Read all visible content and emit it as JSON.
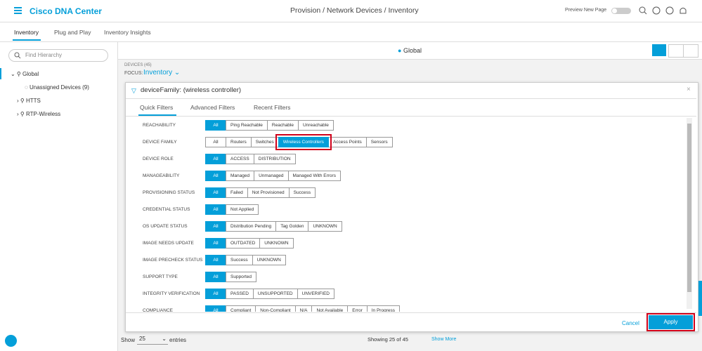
{
  "header": {
    "brand": "Cisco DNA Center",
    "breadcrumb": "Provision / Network Devices / Inventory",
    "preview": "Preview New Page"
  },
  "tabs": [
    "Inventory",
    "Plug and Play",
    "Inventory Insights"
  ],
  "sidebar": {
    "search": "Find Hierarchy",
    "root": "Global",
    "items": [
      "Unassigned Devices (9)",
      "HTTS",
      "RTP-Wireless"
    ]
  },
  "location": "Global",
  "devices": {
    "count": "DEVICES (45)",
    "focus_label": "FOCUS:",
    "focus": "Inventory"
  },
  "filter": {
    "query": "deviceFamily: (wireless controller)",
    "tabs": [
      "Quick Filters",
      "Advanced Filters",
      "Recent Filters"
    ],
    "rows": [
      {
        "label": "REACHABILITY",
        "options": [
          "All",
          "Ping Reachable",
          "Reachable",
          "Unreachable"
        ],
        "selected": 0
      },
      {
        "label": "DEVICE FAMILY",
        "options": [
          "All",
          "Routers",
          "Switches",
          "Wireless Controllers",
          "Access Points",
          "Sensors"
        ],
        "selected": 3,
        "highlight": 3
      },
      {
        "label": "DEVICE ROLE",
        "options": [
          "All",
          "ACCESS",
          "DISTRIBUTION"
        ],
        "selected": 0
      },
      {
        "label": "MANAGEABILITY",
        "options": [
          "All",
          "Managed",
          "Unmanaged",
          "Managed With Errors"
        ],
        "selected": 0
      },
      {
        "label": "PROVISIONING STATUS",
        "options": [
          "All",
          "Failed",
          "Not Provisioned",
          "Success"
        ],
        "selected": 0
      },
      {
        "label": "CREDENTIAL STATUS",
        "options": [
          "All",
          "Not Applied"
        ],
        "selected": 0
      },
      {
        "label": "OS UPDATE STATUS",
        "options": [
          "All",
          "Distribution Pending",
          "Tag Golden",
          "UNKNOWN"
        ],
        "selected": 0
      },
      {
        "label": "IMAGE NEEDS UPDATE",
        "options": [
          "All",
          "OUTDATED",
          "UNKNOWN"
        ],
        "selected": 0
      },
      {
        "label": "IMAGE PRECHECK STATUS",
        "options": [
          "All",
          "Success",
          "UNKNOWN"
        ],
        "selected": 0
      },
      {
        "label": "SUPPORT TYPE",
        "options": [
          "All",
          "Supported"
        ],
        "selected": 0
      },
      {
        "label": "INTEGRITY VERIFICATION",
        "options": [
          "All",
          "PASSED",
          "UNSUPPORTED",
          "UNVERIFIED"
        ],
        "selected": 0
      },
      {
        "label": "COMPLIANCE",
        "options": [
          "All",
          "Compliant",
          "Non-Compliant",
          "N/A",
          "Not Available",
          "Error",
          "In Progress"
        ],
        "selected": 0
      }
    ],
    "cancel": "Cancel",
    "apply": "Apply"
  },
  "footer": {
    "show": "Show",
    "page_size": "25",
    "entries": "entries",
    "showing": "Showing 25 of 45",
    "more": "Show More"
  }
}
